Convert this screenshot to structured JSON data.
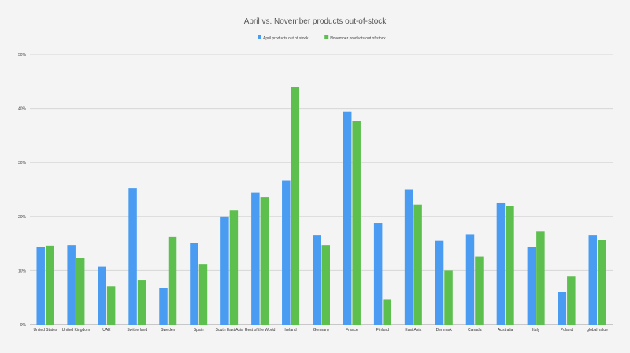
{
  "chart_data": {
    "type": "bar",
    "title": "April vs. November products out-of-stock",
    "xlabel": "",
    "ylabel": "",
    "ylim": [
      0,
      50
    ],
    "yticks": [
      0,
      10,
      20,
      30,
      40,
      50
    ],
    "ytick_suffix": "%",
    "grid": true,
    "legend_position": "top-center",
    "categories": [
      "United States",
      "United Kingdom",
      "UAE",
      "Switzerland",
      "Sweden",
      "Spain",
      "South East Asia",
      "Rest of the World",
      "Ireland",
      "Germany",
      "France",
      "Finland",
      "East Asia",
      "Denmark",
      "Canada",
      "Australia",
      "Italy",
      "Poland",
      "global value"
    ],
    "series": [
      {
        "name": "April products out of stock",
        "color": "#4a9cf2",
        "values": [
          14.3,
          14.7,
          10.7,
          25.2,
          6.8,
          15.1,
          20.0,
          24.4,
          26.6,
          16.6,
          39.4,
          18.8,
          25.0,
          15.5,
          16.7,
          22.6,
          14.4,
          6.0,
          16.6
        ]
      },
      {
        "name": "November products out of stock",
        "color": "#5cbf4e",
        "values": [
          14.6,
          12.3,
          7.1,
          8.3,
          16.2,
          11.2,
          21.1,
          23.6,
          43.9,
          14.7,
          37.7,
          4.6,
          22.2,
          10.0,
          12.6,
          22.0,
          17.3,
          9.0,
          15.6
        ]
      }
    ]
  }
}
